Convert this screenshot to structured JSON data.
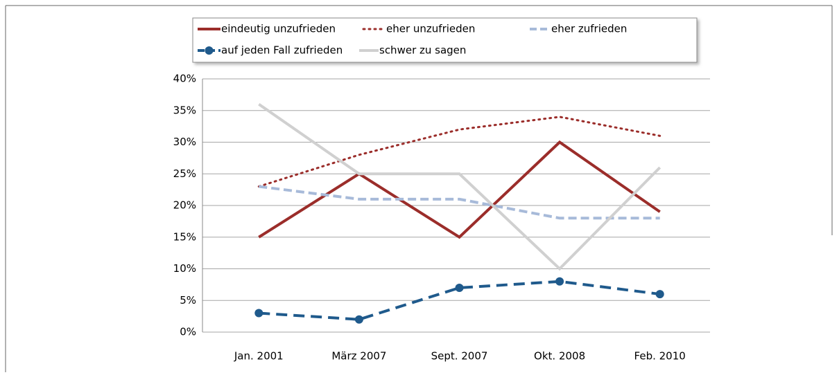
{
  "chart_data": {
    "type": "line",
    "categories": [
      "Jan. 2001",
      "März 2007",
      "Sept. 2007",
      "Okt. 2008",
      "Feb. 2010"
    ],
    "series": [
      {
        "name": "eindeutig unzufrieden",
        "color": "#9b2d2a",
        "style": "solid",
        "values": [
          15,
          25,
          15,
          30,
          19
        ]
      },
      {
        "name": "eher unzufrieden",
        "color": "#9b2d2a",
        "style": "dotted",
        "values": [
          23,
          28,
          32,
          34,
          31
        ]
      },
      {
        "name": "eher zufrieden",
        "color": "#a7bad9",
        "style": "dashed",
        "values": [
          23,
          21,
          21,
          18,
          18
        ]
      },
      {
        "name": "auf jeden Fall zufrieden",
        "color": "#1f5a8c",
        "style": "dashed",
        "marker": "circle",
        "values": [
          3,
          2,
          7,
          8,
          6
        ]
      },
      {
        "name": "schwer zu sagen",
        "color": "#d0d0d0",
        "style": "solid",
        "values": [
          36,
          25,
          25,
          10,
          26
        ]
      }
    ],
    "ylim": [
      0,
      40
    ],
    "yticks": [
      {
        "value": 0,
        "label": "0%"
      },
      {
        "value": 5,
        "label": "5%"
      },
      {
        "value": 10,
        "label": "10%"
      },
      {
        "value": 15,
        "label": "15%"
      },
      {
        "value": 20,
        "label": "20%"
      },
      {
        "value": 25,
        "label": "25%"
      },
      {
        "value": 30,
        "label": "30%"
      },
      {
        "value": 35,
        "label": "35%"
      },
      {
        "value": 40,
        "label": "40%"
      }
    ],
    "grid": true,
    "legend": "top"
  }
}
